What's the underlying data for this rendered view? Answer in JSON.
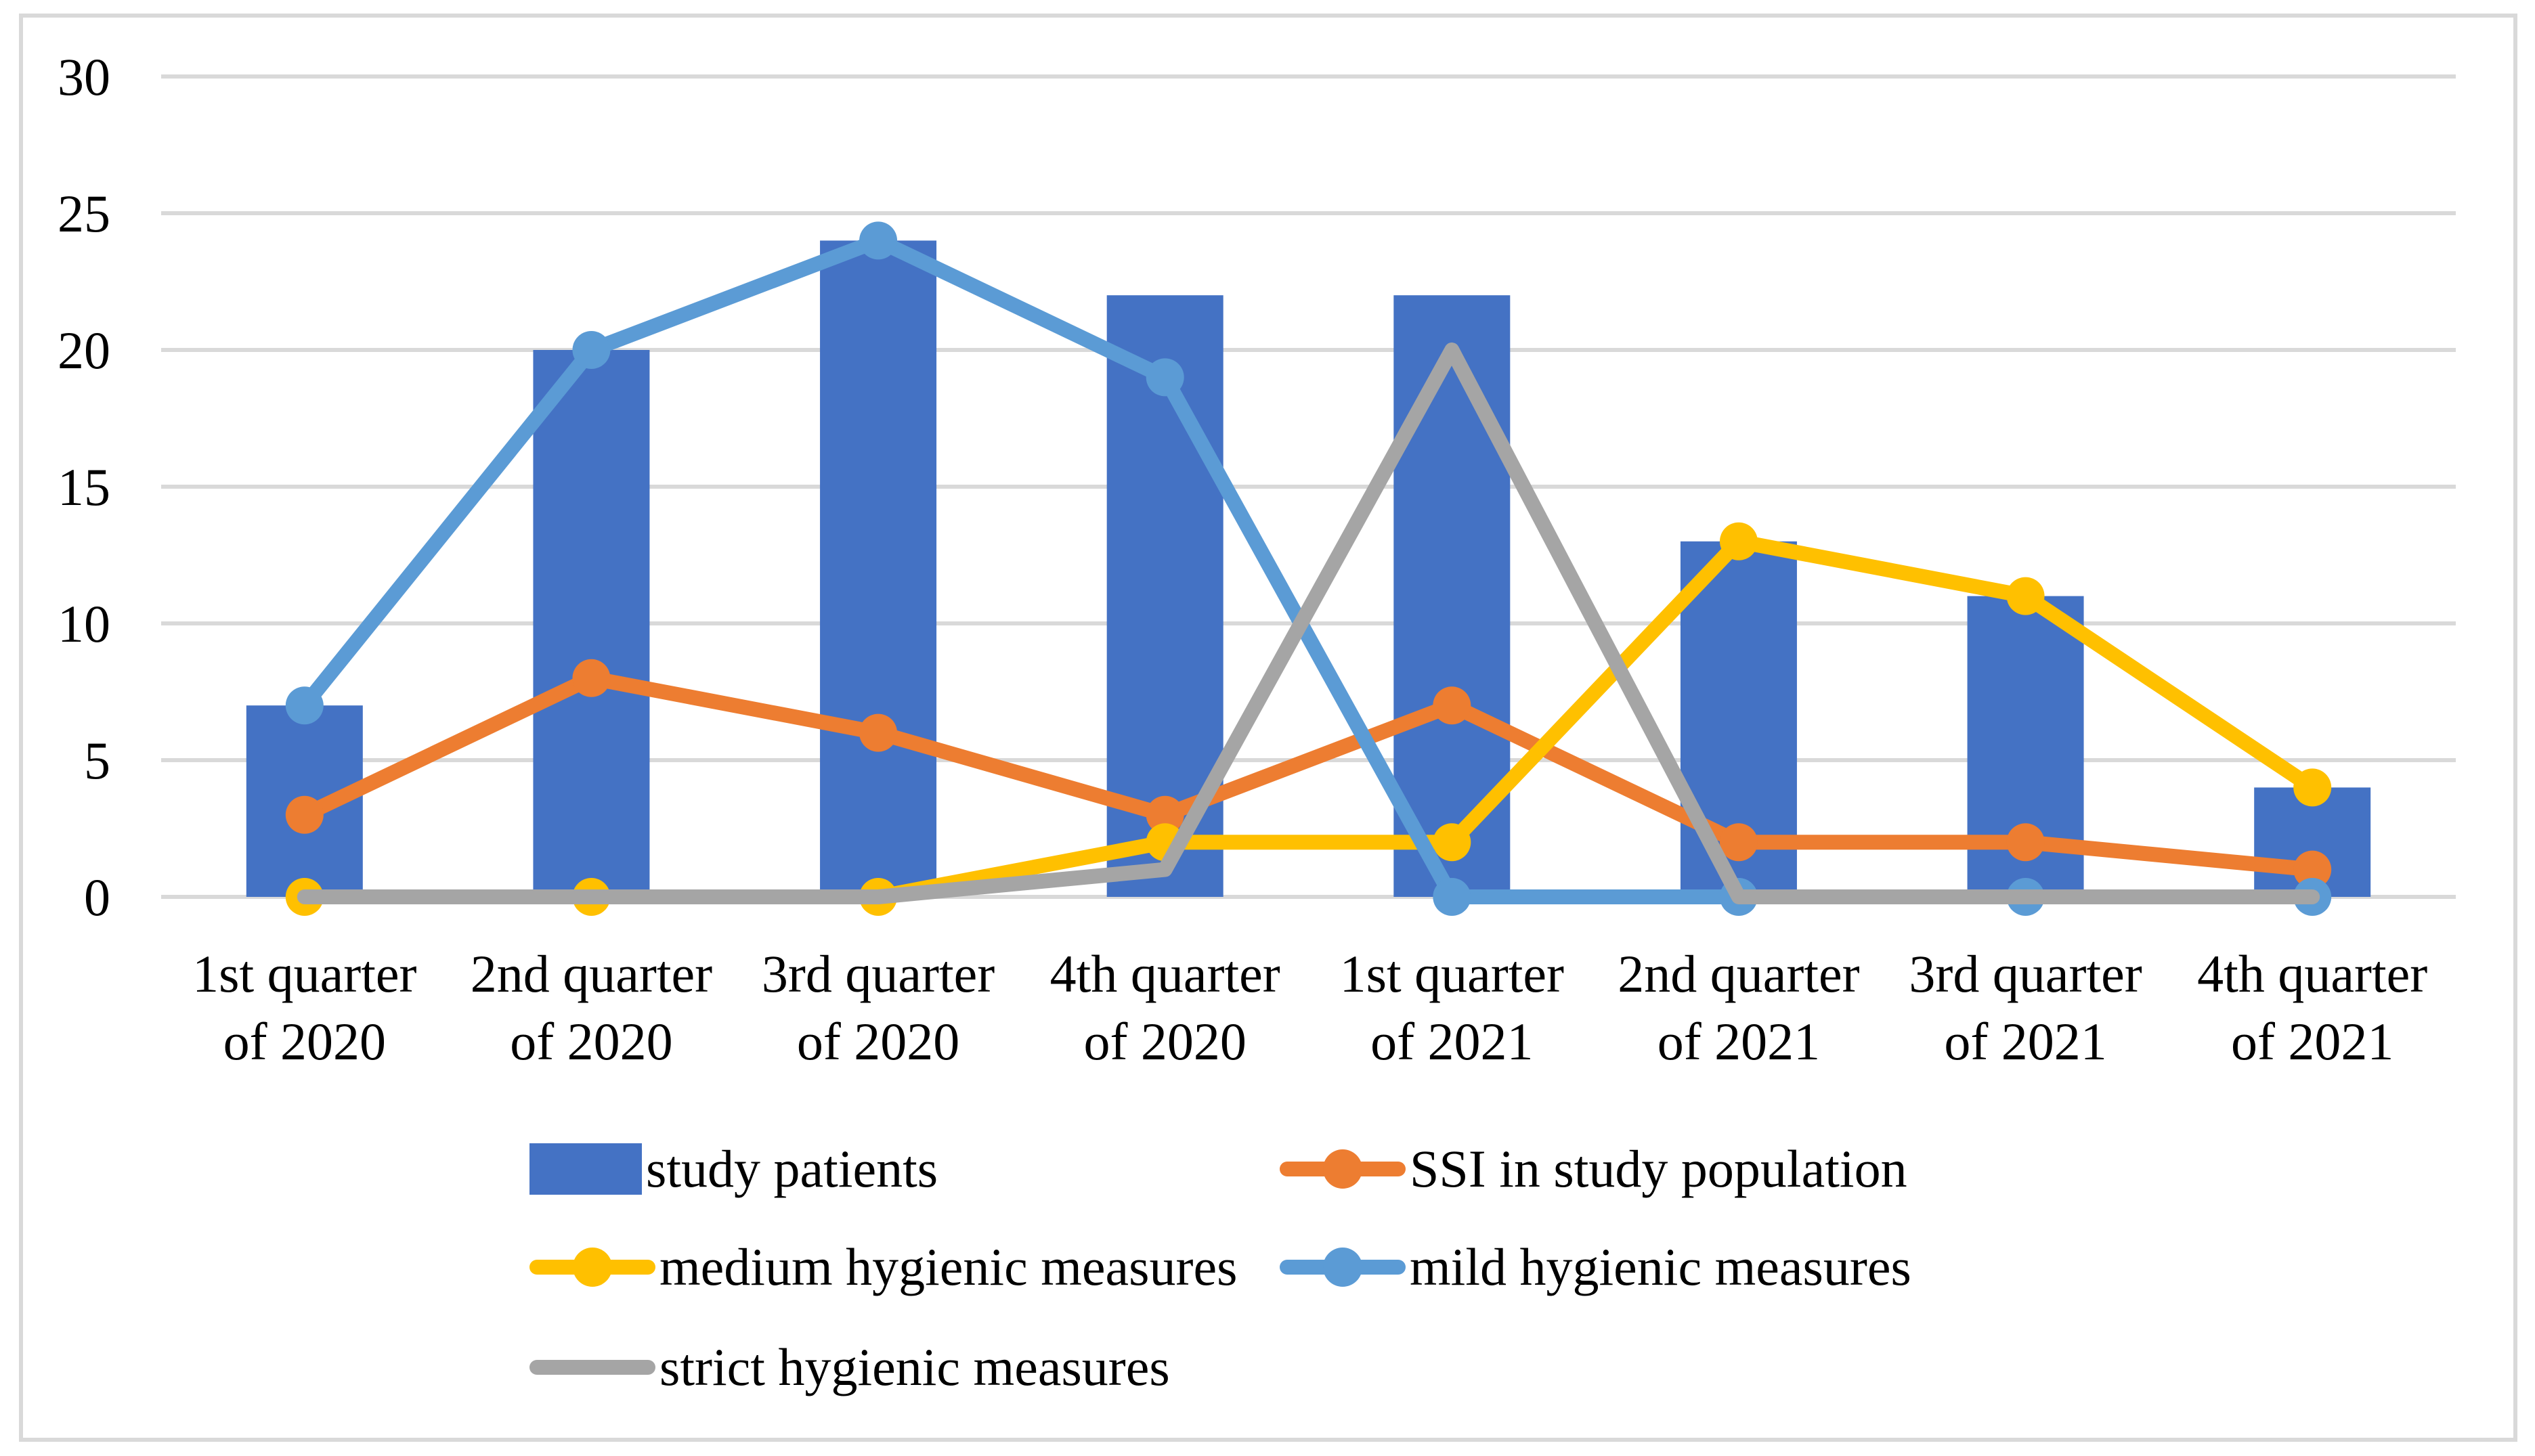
{
  "chart_data": {
    "type": "combo (bar + line)",
    "categories": [
      [
        "1st quarter",
        "of 2020"
      ],
      [
        "2nd quarter",
        "of 2020"
      ],
      [
        "3rd quarter",
        "of 2020"
      ],
      [
        "4th quarter",
        "of 2020"
      ],
      [
        "1st quarter",
        "of 2021"
      ],
      [
        "2nd quarter",
        "of 2021"
      ],
      [
        "3rd quarter",
        "of 2021"
      ],
      [
        "4th quarter",
        "of 2021"
      ]
    ],
    "ylim": [
      0,
      30
    ],
    "yticks": [
      0,
      5,
      10,
      15,
      20,
      25,
      30
    ],
    "grid": true,
    "legend_position": "bottom",
    "bar_series": {
      "name": "study patients",
      "color": "#4472C4",
      "values": [
        7,
        20,
        24,
        22,
        22,
        13,
        11,
        4
      ]
    },
    "line_series": [
      {
        "name": "SSI in study population",
        "color": "#ED7D31",
        "marker": true,
        "values": [
          3,
          8,
          6,
          3,
          7,
          2,
          2,
          1
        ]
      },
      {
        "name": "medium hygienic measures",
        "color": "#FFC000",
        "marker": true,
        "values": [
          0,
          0,
          0,
          2,
          2,
          13,
          11,
          4
        ]
      },
      {
        "name": "mild hygienic measures",
        "color": "#5B9BD5",
        "marker": true,
        "values": [
          7,
          20,
          24,
          19,
          0,
          0,
          0,
          0
        ]
      },
      {
        "name": "strict hygienic measures",
        "color": "#A5A5A5",
        "marker": false,
        "values": [
          0,
          0,
          0,
          1,
          20,
          0,
          0,
          0
        ]
      }
    ],
    "colors": {
      "background": "#FFFFFF",
      "gridline": "#D9D9D9",
      "border": "#D9D9D9",
      "text": "#000000"
    }
  }
}
